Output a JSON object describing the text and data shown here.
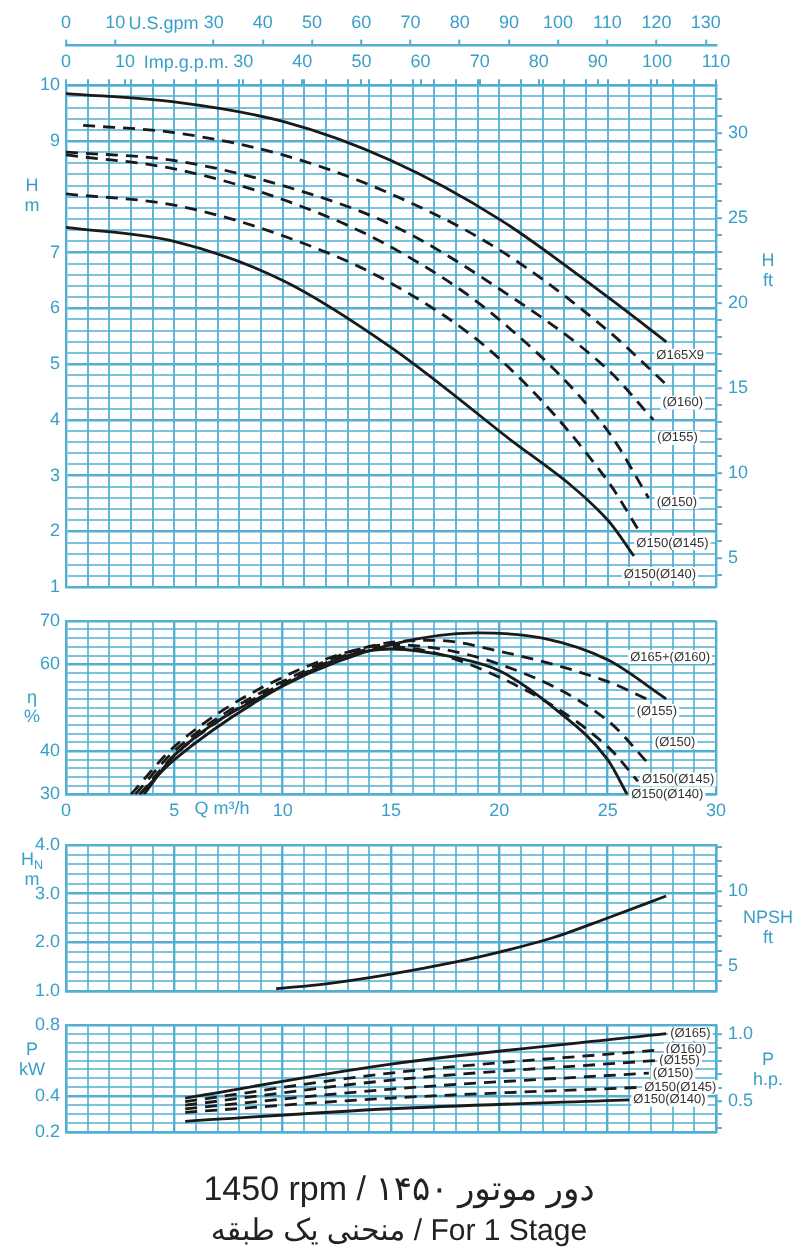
{
  "chart_data": [
    {
      "type": "line",
      "xlabel": "Imp.g.p.m.",
      "x2label": "U.S.gpm",
      "ylabel": "H\nm",
      "y2label": "H\nft",
      "grid": true,
      "xlim": [
        0,
        110
      ],
      "xticks": [
        0,
        {
          "value": 3.7,
          "label": null
        },
        {
          "value": 7.3,
          "label": null
        },
        10,
        {
          "value": 11,
          "label": null
        },
        {
          "value": 14.7,
          "label": null
        },
        {
          "value": 18.3,
          "label": null
        },
        {
          "value": 22,
          "label": null
        },
        {
          "value": 25.7,
          "label": null
        },
        {
          "value": 29.3,
          "label": null
        },
        30,
        {
          "value": 33,
          "label": null
        },
        {
          "value": 36.7,
          "label": null
        },
        40,
        {
          "value": 40.3,
          "label": null
        },
        {
          "value": 44,
          "label": null
        },
        {
          "value": 47.7,
          "label": null
        },
        50,
        {
          "value": 51.3,
          "label": null
        },
        {
          "value": 55,
          "label": null
        },
        {
          "value": 58.7,
          "label": null
        },
        60,
        {
          "value": 62.3,
          "label": null
        },
        {
          "value": 66,
          "label": null
        },
        {
          "value": 69.7,
          "label": null
        },
        70,
        {
          "value": 73.3,
          "label": null
        },
        {
          "value": 77,
          "label": null
        },
        80,
        {
          "value": 80.7,
          "label": null
        },
        {
          "value": 84.3,
          "label": null
        },
        {
          "value": 88,
          "label": null
        },
        90,
        {
          "value": 91.7,
          "label": null
        },
        {
          "value": 95.3,
          "label": null
        },
        {
          "value": 99,
          "label": null
        },
        100,
        {
          "value": 102.7,
          "label": null
        },
        {
          "value": 106.3,
          "label": null
        },
        110
      ],
      "x2lim": [
        0,
        132.09
      ],
      "x2ticks": [
        0,
        10,
        30,
        40,
        50,
        60,
        70,
        80,
        90,
        100,
        110,
        120,
        130
      ],
      "ylim": [
        1,
        10
      ],
      "yticks": [
        1,
        {
          "value": 1.2,
          "label": null
        },
        {
          "value": 1.4,
          "label": null
        },
        {
          "value": 1.6,
          "label": null
        },
        {
          "value": 1.8,
          "label": null
        },
        2,
        {
          "value": 2.2,
          "label": null
        },
        {
          "value": 2.4,
          "label": null
        },
        {
          "value": 2.6,
          "label": null
        },
        {
          "value": 2.8,
          "label": null
        },
        3,
        {
          "value": 3.2,
          "label": null
        },
        {
          "value": 3.4,
          "label": null
        },
        {
          "value": 3.6,
          "label": null
        },
        {
          "value": 3.8,
          "label": null
        },
        4,
        {
          "value": 4.2,
          "label": null
        },
        {
          "value": 4.4,
          "label": null
        },
        {
          "value": 4.6,
          "label": null
        },
        {
          "value": 4.8,
          "label": null
        },
        5,
        {
          "value": 5.2,
          "label": null
        },
        {
          "value": 5.4,
          "label": null
        },
        {
          "value": 5.6,
          "label": null
        },
        {
          "value": 5.8,
          "label": null
        },
        6,
        {
          "value": 6.2,
          "label": null
        },
        {
          "value": 6.4,
          "label": null
        },
        {
          "value": 6.6,
          "label": null
        },
        {
          "value": 6.8,
          "label": null
        },
        7,
        {
          "value": 7.2,
          "label": null
        },
        {
          "value": 7.4,
          "label": null
        },
        {
          "value": 7.6,
          "label": null
        },
        {
          "value": 7.8,
          "label": null
        },
        {
          "value": 8,
          "label": null
        },
        {
          "value": 8.2,
          "label": null
        },
        {
          "value": 8.4,
          "label": null
        },
        {
          "value": 8.6,
          "label": null
        },
        {
          "value": 8.8,
          "label": null
        },
        9,
        {
          "value": 9.2,
          "label": null
        },
        {
          "value": 9.4,
          "label": null
        },
        {
          "value": 9.6,
          "label": null
        },
        {
          "value": 9.8,
          "label": null
        },
        10
      ],
      "y2lim": [
        3.281,
        32.81
      ],
      "y2ticks": [
        {
          "value": 4,
          "label": null
        },
        5,
        {
          "value": 6,
          "label": null
        },
        {
          "value": 7,
          "label": null
        },
        {
          "value": 8,
          "label": null
        },
        {
          "value": 9,
          "label": null
        },
        10,
        {
          "value": 11,
          "label": null
        },
        {
          "value": 12,
          "label": null
        },
        {
          "value": 13,
          "label": null
        },
        {
          "value": 14,
          "label": null
        },
        15,
        {
          "value": 16,
          "label": null
        },
        {
          "value": 17,
          "label": null
        },
        {
          "value": 18,
          "label": null
        },
        {
          "value": 19,
          "label": null
        },
        20,
        {
          "value": 21,
          "label": null
        },
        {
          "value": 22,
          "label": null
        },
        {
          "value": 23,
          "label": null
        },
        {
          "value": 24,
          "label": null
        },
        25,
        {
          "value": 26,
          "label": null
        },
        {
          "value": 27,
          "label": null
        },
        {
          "value": 28,
          "label": null
        },
        {
          "value": 29,
          "label": null
        },
        30,
        {
          "value": 31,
          "label": null
        },
        {
          "value": 32,
          "label": null
        }
      ],
      "series": [
        {
          "name": "Ø165X9",
          "color": "#1a1a1a",
          "line_style": "solid",
          "x": [
            0,
            18.3,
            36.7,
            55,
            73.3,
            91.7,
            101.6
          ],
          "values": [
            9.85,
            9.7,
            9.35,
            8.65,
            7.6,
            6.2,
            5.4
          ]
        },
        {
          "name": "(Ø160)",
          "color": "#1a1a1a",
          "line_style": "dashed",
          "x": [
            2.9,
            18.3,
            36.7,
            55,
            73.3,
            91.7,
            102.3
          ],
          "values": [
            9.28,
            9.15,
            8.75,
            8.05,
            7.05,
            5.6,
            4.56
          ]
        },
        {
          "name": "(Ø155)",
          "color": "#1a1a1a",
          "line_style": "dashed",
          "x": [
            0,
            18.3,
            36.7,
            55,
            73.3,
            91.7,
            99.4
          ],
          "values": [
            8.8,
            8.65,
            8.2,
            7.5,
            6.35,
            4.9,
            4.0
          ]
        },
        {
          "name": "(Ø150)",
          "color": "#1a1a1a",
          "line_style": "dashed",
          "x": [
            0,
            18.3,
            36.7,
            55,
            73.3,
            91.7,
            98.6
          ],
          "values": [
            8.75,
            8.5,
            7.95,
            7.1,
            5.8,
            3.8,
            2.6
          ]
        },
        {
          "name": "Ø150(Ø145)",
          "color": "#1a1a1a",
          "line_style": "dashed",
          "x": [
            0,
            18.3,
            36.7,
            55,
            73.3,
            91.7,
            97.2
          ],
          "values": [
            8.05,
            7.85,
            7.3,
            6.45,
            5.1,
            2.9,
            1.97
          ]
        },
        {
          "name": "Ø150(Ø140)",
          "color": "#1a1a1a",
          "line_style": "solid",
          "x": [
            0,
            18.3,
            36.7,
            55,
            73.3,
            91.7,
            96.1
          ],
          "values": [
            7.45,
            7.2,
            6.5,
            5.3,
            3.8,
            2.2,
            1.56
          ]
        }
      ]
    },
    {
      "type": "line",
      "ylabel": "η\n%",
      "xlabel": "Q m³/h",
      "grid": true,
      "xlim": [
        0,
        30
      ],
      "xticks": [
        0,
        {
          "value": 1,
          "label": null
        },
        {
          "value": 2,
          "label": null
        },
        {
          "value": 3,
          "label": null
        },
        {
          "value": 4,
          "label": null
        },
        5,
        {
          "value": 6,
          "label": null
        },
        {
          "value": 7,
          "label": null
        },
        {
          "value": 8,
          "label": null
        },
        {
          "value": 9,
          "label": null
        },
        10,
        {
          "value": 11,
          "label": null
        },
        {
          "value": 12,
          "label": null
        },
        {
          "value": 13,
          "label": null
        },
        {
          "value": 14,
          "label": null
        },
        15,
        {
          "value": 16,
          "label": null
        },
        {
          "value": 17,
          "label": null
        },
        {
          "value": 18,
          "label": null
        },
        {
          "value": 19,
          "label": null
        },
        20,
        {
          "value": 21,
          "label": null
        },
        {
          "value": 22,
          "label": null
        },
        {
          "value": 23,
          "label": null
        },
        {
          "value": 24,
          "label": null
        },
        25,
        {
          "value": 26,
          "label": null
        },
        {
          "value": 27,
          "label": null
        },
        {
          "value": 28,
          "label": null
        },
        {
          "value": 29,
          "label": null
        },
        30
      ],
      "ylim": [
        30,
        70
      ],
      "yticks": [
        30,
        {
          "value": 32,
          "label": null
        },
        {
          "value": 34,
          "label": null
        },
        {
          "value": 36,
          "label": null
        },
        {
          "value": 38,
          "label": null
        },
        40,
        {
          "value": 42,
          "label": null
        },
        {
          "value": 44,
          "label": null
        },
        {
          "value": 46,
          "label": null
        },
        {
          "value": 48,
          "label": null
        },
        {
          "value": 50,
          "label": null
        },
        {
          "value": 52,
          "label": null
        },
        {
          "value": 54,
          "label": null
        },
        {
          "value": 56,
          "label": null
        },
        {
          "value": 58,
          "label": null
        },
        60,
        {
          "value": 62,
          "label": null
        },
        {
          "value": 64,
          "label": null
        },
        {
          "value": 66,
          "label": null
        },
        {
          "value": 68,
          "label": null
        },
        70
      ],
      "series": [
        {
          "name": "Ø165+(Ø160)",
          "color": "#1a1a1a",
          "line_style": "solid",
          "x": [
            3.6,
            5,
            10,
            15,
            19,
            22,
            25,
            27.7
          ],
          "values": [
            30,
            39,
            55,
            64.5,
            67.2,
            66,
            61,
            52
          ]
        },
        {
          "name": "(Ø155)",
          "color": "#1a1a1a",
          "line_style": "dashed",
          "x": [
            3.0,
            5,
            10,
            15,
            17,
            20,
            25,
            26.8
          ],
          "values": [
            30,
            41,
            57,
            65,
            65.5,
            63,
            56,
            52
          ]
        },
        {
          "name": "(Ø150)",
          "color": "#1a1a1a",
          "line_style": "dashed",
          "x": [
            3.2,
            5,
            10,
            15,
            20,
            25,
            26.9
          ],
          "values": [
            30,
            40,
            56,
            64.5,
            60,
            47,
            37
          ]
        },
        {
          "name": "Ø150(Ø145)",
          "color": "#1a1a1a",
          "line_style": "dashed",
          "x": [
            3.4,
            5,
            10,
            15,
            20,
            25,
            26.4
          ],
          "values": [
            30,
            39,
            55.5,
            64,
            57,
            41,
            33
          ]
        },
        {
          "name": "Ø150(Ø140)",
          "color": "#1a1a1a",
          "line_style": "solid",
          "x": [
            3.4,
            5,
            10,
            13,
            15,
            18,
            20,
            22.5,
            25,
            25.9
          ],
          "values": [
            30,
            38,
            55,
            62,
            63.5,
            61.5,
            58.5,
            50,
            38,
            30
          ]
        }
      ]
    },
    {
      "type": "line",
      "ylabel": "H$_{N}$\nm",
      "y2label": "NPSH\nft",
      "grid": true,
      "tick_labels": "y",
      "xlim": [
        0,
        30
      ],
      "xticks": [
        0,
        {
          "value": 1,
          "label": null
        },
        {
          "value": 2,
          "label": null
        },
        {
          "value": 3,
          "label": null
        },
        {
          "value": 4,
          "label": null
        },
        5,
        {
          "value": 6,
          "label": null
        },
        {
          "value": 7,
          "label": null
        },
        {
          "value": 8,
          "label": null
        },
        {
          "value": 9,
          "label": null
        },
        10,
        {
          "value": 11,
          "label": null
        },
        {
          "value": 12,
          "label": null
        },
        {
          "value": 13,
          "label": null
        },
        {
          "value": 14,
          "label": null
        },
        15,
        {
          "value": 16,
          "label": null
        },
        {
          "value": 17,
          "label": null
        },
        {
          "value": 18,
          "label": null
        },
        {
          "value": 19,
          "label": null
        },
        20,
        {
          "value": 21,
          "label": null
        },
        {
          "value": 22,
          "label": null
        },
        {
          "value": 23,
          "label": null
        },
        {
          "value": 24,
          "label": null
        },
        25,
        {
          "value": 26,
          "label": null
        },
        {
          "value": 27,
          "label": null
        },
        {
          "value": 28,
          "label": null
        },
        {
          "value": 29,
          "label": null
        },
        30
      ],
      "ylim": [
        1,
        4
      ],
      "yticks": [
        {
          "value": 1,
          "label": "1.0"
        },
        {
          "value": 1.2,
          "label": null
        },
        {
          "value": 1.4,
          "label": null
        },
        {
          "value": 1.6,
          "label": null
        },
        {
          "value": 1.8,
          "label": null
        },
        {
          "value": 2,
          "label": "2.0"
        },
        {
          "value": 2.2,
          "label": null
        },
        {
          "value": 2.4,
          "label": null
        },
        {
          "value": 2.6,
          "label": null
        },
        {
          "value": 2.8,
          "label": null
        },
        {
          "value": 3,
          "label": "3.0"
        },
        {
          "value": 3.2,
          "label": null
        },
        {
          "value": 3.4,
          "label": null
        },
        {
          "value": 3.6,
          "label": null
        },
        {
          "value": 3.8,
          "label": null
        },
        {
          "value": 4,
          "label": "4.0"
        }
      ],
      "y2lim": [
        3.281,
        13.12
      ],
      "y2ticks": [
        {
          "value": 4,
          "label": null
        },
        5,
        {
          "value": 6,
          "label": null
        },
        {
          "value": 7,
          "label": null
        },
        {
          "value": 8,
          "label": null
        },
        {
          "value": 9,
          "label": null
        },
        10,
        {
          "value": 11,
          "label": null
        },
        {
          "value": 12,
          "label": null
        },
        {
          "value": 13,
          "label": null
        }
      ],
      "series": [
        {
          "color": "#1a1a1a",
          "line_style": "solid",
          "x": [
            9.7,
            12,
            15,
            18,
            20,
            22.5,
            25,
            27.7
          ],
          "values": [
            1.05,
            1.15,
            1.35,
            1.6,
            1.8,
            2.1,
            2.5,
            2.95
          ]
        }
      ]
    },
    {
      "type": "line",
      "ylabel": "P\nkW",
      "y2label": "P\nh.p.",
      "grid": true,
      "tick_labels": "y",
      "title": "1450 rpm / دور موتور ۱۴۵۰",
      "subtitle": "منحنی یک طبقه / For 1 Stage",
      "xlim": [
        0,
        30
      ],
      "xticks": [
        0,
        {
          "value": 1,
          "label": null
        },
        {
          "value": 2,
          "label": null
        },
        {
          "value": 3,
          "label": null
        },
        {
          "value": 4,
          "label": null
        },
        5,
        {
          "value": 6,
          "label": null
        },
        {
          "value": 7,
          "label": null
        },
        {
          "value": 8,
          "label": null
        },
        {
          "value": 9,
          "label": null
        },
        10,
        {
          "value": 11,
          "label": null
        },
        {
          "value": 12,
          "label": null
        },
        {
          "value": 13,
          "label": null
        },
        {
          "value": 14,
          "label": null
        },
        15,
        {
          "value": 16,
          "label": null
        },
        {
          "value": 17,
          "label": null
        },
        {
          "value": 18,
          "label": null
        },
        {
          "value": 19,
          "label": null
        },
        20,
        {
          "value": 21,
          "label": null
        },
        {
          "value": 22,
          "label": null
        },
        {
          "value": 23,
          "label": null
        },
        {
          "value": 24,
          "label": null
        },
        25,
        {
          "value": 26,
          "label": null
        },
        {
          "value": 27,
          "label": null
        },
        {
          "value": 28,
          "label": null
        },
        {
          "value": 29,
          "label": null
        },
        30
      ],
      "ylim": [
        0.2,
        0.8
      ],
      "yticks": [
        0.2,
        {
          "value": 0.25,
          "label": null
        },
        {
          "value": 0.3,
          "label": null
        },
        {
          "value": 0.35,
          "label": null
        },
        0.4,
        {
          "value": 0.45,
          "label": null
        },
        {
          "value": 0.5,
          "label": null
        },
        {
          "value": 0.55,
          "label": null
        },
        {
          "value": 0.6,
          "label": null
        },
        {
          "value": 0.65,
          "label": null
        },
        {
          "value": 0.7,
          "label": null
        },
        {
          "value": 0.75,
          "label": null
        },
        0.8
      ],
      "y2lim": [
        0.268,
        1.073
      ],
      "y2ticks": [
        {
          "value": 0.3,
          "label": null
        },
        {
          "value": 0.4,
          "label": null
        },
        0.5,
        {
          "value": 0.6,
          "label": null
        },
        {
          "value": 0.7,
          "label": null
        },
        {
          "value": 0.8,
          "label": null
        },
        {
          "value": 0.9,
          "label": null
        },
        {
          "value": 1,
          "label": "1.0"
        }
      ],
      "series": [
        {
          "name": "(Ø165)",
          "color": "#1a1a1a",
          "line_style": "solid",
          "x": [
            5.5,
            15,
            27.7
          ],
          "values": [
            0.39,
            0.58,
            0.75
          ]
        },
        {
          "name": "(Ø160)",
          "color": "#1a1a1a",
          "line_style": "dashed",
          "x": [
            5.5,
            15,
            27.5
          ],
          "values": [
            0.37,
            0.53,
            0.66
          ]
        },
        {
          "name": "(Ø155)",
          "color": "#1a1a1a",
          "line_style": "dashed",
          "x": [
            5.5,
            15,
            27.2
          ],
          "values": [
            0.35,
            0.49,
            0.6
          ]
        },
        {
          "name": "(Ø150)",
          "color": "#1a1a1a",
          "line_style": "dashed",
          "x": [
            5.5,
            15,
            26.9
          ],
          "values": [
            0.33,
            0.44,
            0.53
          ]
        },
        {
          "name": "Ø150(Ø145)",
          "color": "#1a1a1a",
          "line_style": "dashed",
          "x": [
            5.5,
            15,
            26.5
          ],
          "values": [
            0.31,
            0.39,
            0.45
          ]
        },
        {
          "name": "Ø150(Ø140)",
          "color": "#1a1a1a",
          "line_style": "solid",
          "x": [
            5.5,
            15,
            26
          ],
          "values": [
            0.26,
            0.33,
            0.38
          ]
        }
      ]
    }
  ]
}
